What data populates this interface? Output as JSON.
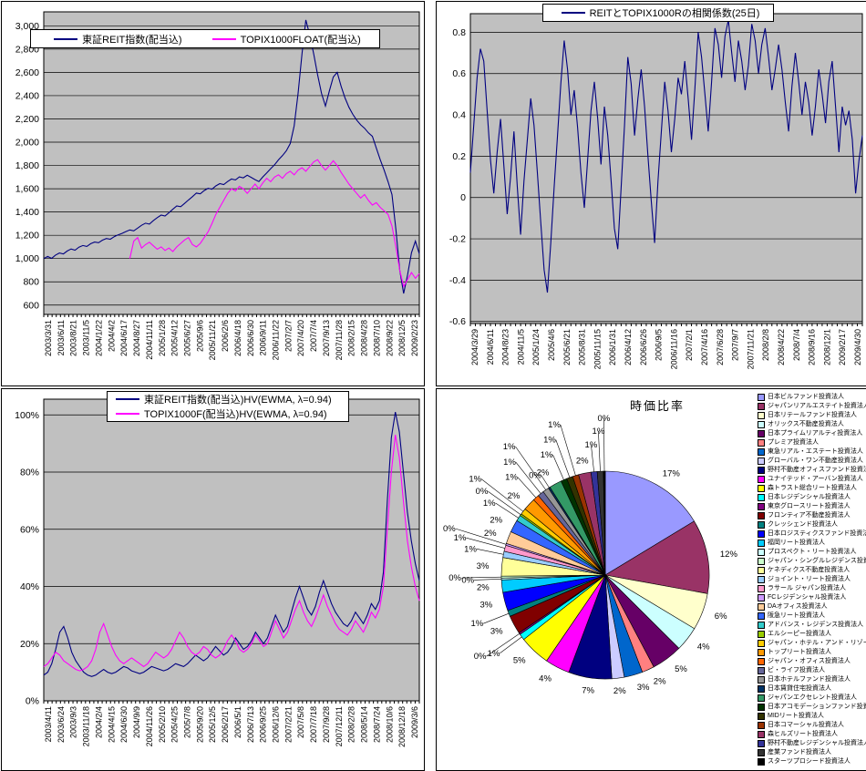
{
  "chart_data": [
    {
      "type": "line",
      "title": "",
      "legend": [
        "東証REIT指数(配当込)",
        "TOPIX1000FLOAT(配当込)"
      ],
      "legend_position": "top",
      "grid": true,
      "plot_bg": "#C0C0C0",
      "ylim": [
        520,
        3120
      ],
      "y_ticks": [
        {
          "label": "3,000",
          "v": 3000
        },
        {
          "label": "2,800",
          "v": 2800
        },
        {
          "label": "2,600",
          "v": 2600
        },
        {
          "label": "2,400",
          "v": 2400
        },
        {
          "label": "2,200",
          "v": 2200
        },
        {
          "label": "2,000",
          "v": 2000
        },
        {
          "label": "1,800",
          "v": 1800
        },
        {
          "label": "1,600",
          "v": 1600
        },
        {
          "label": "1,400",
          "v": 1400
        },
        {
          "label": "1,200",
          "v": 1200
        },
        {
          "label": "1,000",
          "v": 1000
        },
        {
          "label": "800",
          "v": 800
        },
        {
          "label": "600",
          "v": 600
        }
      ],
      "x_labels": [
        "2003/3/31",
        "2003/6/11",
        "2003/8/21",
        "2003/11/5",
        "2004/1/22",
        "2004/4/2",
        "2004/6/17",
        "2004/8/27",
        "2004/11/11",
        "2005/1/28",
        "2005/4/12",
        "2005/6/27",
        "2005/9/6",
        "2005/11/21",
        "2006/2/6",
        "2006/4/18",
        "2006/6/30",
        "2006/9/11",
        "2006/11/22",
        "2007/2/7",
        "2007/4/20",
        "2007/7/4",
        "2007/9/13",
        "2007/11/28",
        "2008/2/15",
        "2008/4/28",
        "2008/7/10",
        "2008/9/22",
        "2008/12/5",
        "2009/2/23"
      ],
      "x_points": 97,
      "series": [
        {
          "name": "東証REIT指数(配当込)",
          "color": "#000080",
          "start": 0,
          "values": [
            1000,
            1018,
            1002,
            1030,
            1048,
            1040,
            1065,
            1082,
            1072,
            1098,
            1112,
            1104,
            1128,
            1142,
            1136,
            1158,
            1172,
            1166,
            1188,
            1204,
            1216,
            1232,
            1246,
            1238,
            1262,
            1286,
            1304,
            1296,
            1326,
            1352,
            1374,
            1366,
            1394,
            1424,
            1452,
            1446,
            1474,
            1504,
            1532,
            1562,
            1556,
            1584,
            1604,
            1596,
            1624,
            1644,
            1636,
            1662,
            1684,
            1676,
            1702,
            1694,
            1716,
            1698,
            1678,
            1662,
            1702,
            1736,
            1772,
            1806,
            1848,
            1884,
            1926,
            1988,
            2140,
            2420,
            2760,
            3050,
            2920,
            2760,
            2580,
            2420,
            2310,
            2440,
            2560,
            2600,
            2480,
            2380,
            2300,
            2240,
            2190,
            2150,
            2120,
            2080,
            2050,
            1950,
            1850,
            1760,
            1660,
            1550,
            1250,
            900,
            700,
            860,
            1050,
            1150,
            1040
          ]
        },
        {
          "name": "TOPIX1000FLOAT(配当込)",
          "color": "#FF00FF",
          "start": 22,
          "values": [
            1000,
            1150,
            1180,
            1090,
            1120,
            1140,
            1110,
            1080,
            1100,
            1070,
            1090,
            1060,
            1100,
            1130,
            1160,
            1180,
            1120,
            1100,
            1130,
            1180,
            1230,
            1300,
            1380,
            1440,
            1500,
            1560,
            1600,
            1580,
            1620,
            1600,
            1560,
            1600,
            1640,
            1600,
            1650,
            1690,
            1660,
            1700,
            1720,
            1690,
            1730,
            1750,
            1720,
            1760,
            1780,
            1750,
            1790,
            1830,
            1850,
            1800,
            1760,
            1800,
            1840,
            1800,
            1740,
            1690,
            1640,
            1600,
            1560,
            1520,
            1550,
            1500,
            1460,
            1480,
            1440,
            1410,
            1380,
            1280,
            1100,
            900,
            760,
            820,
            880,
            830,
            870
          ]
        }
      ]
    },
    {
      "type": "line",
      "title": "REITとTOPIX1000Rの相関係数(25日)",
      "legend": [
        "REITとTOPIX1000Rの相関係数(25日)"
      ],
      "legend_position": "top",
      "grid": true,
      "plot_bg": "#C0C0C0",
      "ylim": [
        -0.61,
        0.89
      ],
      "y_ticks": [
        {
          "label": "0.8",
          "v": 0.8
        },
        {
          "label": "0.6",
          "v": 0.6
        },
        {
          "label": "0.4",
          "v": 0.4
        },
        {
          "label": "0.2",
          "v": 0.2
        },
        {
          "label": "0",
          "v": 0
        },
        {
          "label": "-0.2",
          "v": -0.2
        },
        {
          "label": "-0.4",
          "v": -0.4
        },
        {
          "label": "-0.6",
          "v": -0.6
        }
      ],
      "x_labels": [
        "2004/3/29",
        "2004/6/11",
        "2004/8/23",
        "2004/11/5",
        "2005/1/24",
        "2005/4/6",
        "2005/6/21",
        "2005/8/31",
        "2005/11/15",
        "2006/1/31",
        "2006/4/12",
        "2006/6/26",
        "2006/9/5",
        "2006/11/16",
        "2007/2/1",
        "2007/4/16",
        "2007/6/28",
        "2007/9/7",
        "2007/11/21",
        "2008/2/8",
        "2008/4/22",
        "2008/7/4",
        "2008/9/16",
        "2008/12/1",
        "2009/2/17",
        "2009/4/30"
      ],
      "x_points": 118,
      "series": [
        {
          "name": "REITとTOPIX1000Rの相関係数(25日)",
          "color": "#000080",
          "start": 0,
          "values": [
            0.12,
            0.35,
            0.58,
            0.72,
            0.66,
            0.42,
            0.18,
            0.02,
            0.22,
            0.38,
            0.15,
            -0.08,
            0.1,
            0.32,
            0.05,
            -0.18,
            0.08,
            0.28,
            0.48,
            0.35,
            0.12,
            -0.12,
            -0.35,
            -0.46,
            -0.22,
            0.05,
            0.3,
            0.55,
            0.76,
            0.62,
            0.4,
            0.52,
            0.34,
            0.12,
            -0.05,
            0.18,
            0.42,
            0.56,
            0.38,
            0.16,
            0.44,
            0.3,
            0.08,
            -0.15,
            -0.25,
            0.05,
            0.35,
            0.68,
            0.55,
            0.3,
            0.48,
            0.62,
            0.44,
            0.2,
            -0.02,
            -0.22,
            0.08,
            0.32,
            0.56,
            0.42,
            0.22,
            0.38,
            0.58,
            0.5,
            0.66,
            0.48,
            0.28,
            0.52,
            0.8,
            0.68,
            0.5,
            0.32,
            0.56,
            0.82,
            0.74,
            0.58,
            0.78,
            0.86,
            0.7,
            0.56,
            0.76,
            0.66,
            0.52,
            0.64,
            0.84,
            0.76,
            0.6,
            0.74,
            0.82,
            0.68,
            0.52,
            0.62,
            0.74,
            0.62,
            0.46,
            0.32,
            0.54,
            0.7,
            0.56,
            0.4,
            0.56,
            0.46,
            0.3,
            0.44,
            0.62,
            0.5,
            0.36,
            0.56,
            0.66,
            0.44,
            0.22,
            0.44,
            0.35,
            0.42,
            0.28,
            0.02,
            0.18,
            0.3
          ]
        }
      ]
    },
    {
      "type": "line",
      "title": "",
      "legend": [
        "東証REIT指数(配当込)HV(EWMA, λ=0.94)",
        "TOPIX1000F(配当込)HV(EWMA, λ=0.94)"
      ],
      "legend_position": "top",
      "grid": true,
      "plot_bg": "#C0C0C0",
      "ylim": [
        0,
        1.055
      ],
      "y_ticks": [
        {
          "label": "100%",
          "v": 1.0
        },
        {
          "label": "80%",
          "v": 0.8
        },
        {
          "label": "60%",
          "v": 0.6
        },
        {
          "label": "40%",
          "v": 0.4
        },
        {
          "label": "20%",
          "v": 0.2
        },
        {
          "label": "0%",
          "v": 0
        }
      ],
      "x_labels": [
        "2003/4/11",
        "2003/6/24",
        "2003/9/3",
        "2003/11/18",
        "2004/2/4",
        "2004/4/15",
        "2004/6/30",
        "2004/9/9",
        "2004/11/26",
        "2005/2/10",
        "2005/4/25",
        "2005/7/8",
        "2005/9/20",
        "2005/12/5",
        "2006/2/17",
        "2006/5/1",
        "2006/7/13",
        "2006/9/25",
        "2006/12/6",
        "2007/2/21",
        "2007/5/8",
        "2007/7/18",
        "2007/9/28",
        "2007/12/11",
        "2008/2/28",
        "2008/5/14",
        "2008/7/24",
        "2008/10/6",
        "2008/12/18",
        "2009/3/6"
      ],
      "x_points": 95,
      "series": [
        {
          "name": "東証REIT指数(配当込)HV(EWMA, λ=0.94)",
          "color": "#000080",
          "start": 0,
          "values": [
            0.09,
            0.1,
            0.13,
            0.18,
            0.24,
            0.26,
            0.22,
            0.17,
            0.14,
            0.12,
            0.1,
            0.09,
            0.085,
            0.09,
            0.1,
            0.11,
            0.1,
            0.095,
            0.1,
            0.11,
            0.12,
            0.115,
            0.105,
            0.1,
            0.095,
            0.1,
            0.11,
            0.12,
            0.115,
            0.11,
            0.105,
            0.11,
            0.12,
            0.13,
            0.125,
            0.12,
            0.13,
            0.145,
            0.16,
            0.15,
            0.14,
            0.15,
            0.17,
            0.19,
            0.175,
            0.16,
            0.17,
            0.19,
            0.22,
            0.2,
            0.18,
            0.19,
            0.21,
            0.24,
            0.22,
            0.2,
            0.22,
            0.26,
            0.3,
            0.27,
            0.24,
            0.26,
            0.31,
            0.36,
            0.4,
            0.36,
            0.32,
            0.3,
            0.33,
            0.38,
            0.42,
            0.38,
            0.34,
            0.31,
            0.29,
            0.27,
            0.26,
            0.28,
            0.31,
            0.29,
            0.27,
            0.3,
            0.34,
            0.32,
            0.35,
            0.45,
            0.7,
            0.92,
            1.01,
            0.94,
            0.8,
            0.66,
            0.56,
            0.48,
            0.42
          ]
        },
        {
          "name": "TOPIX1000F(配当込)HV(EWMA, λ=0.94)",
          "color": "#FF00FF",
          "start": 0,
          "values": [
            0.12,
            0.13,
            0.15,
            0.17,
            0.16,
            0.14,
            0.13,
            0.12,
            0.11,
            0.105,
            0.11,
            0.12,
            0.14,
            0.18,
            0.24,
            0.27,
            0.23,
            0.19,
            0.16,
            0.14,
            0.13,
            0.14,
            0.15,
            0.14,
            0.13,
            0.12,
            0.13,
            0.15,
            0.17,
            0.16,
            0.15,
            0.16,
            0.18,
            0.21,
            0.24,
            0.22,
            0.19,
            0.17,
            0.16,
            0.17,
            0.19,
            0.18,
            0.16,
            0.15,
            0.16,
            0.18,
            0.21,
            0.23,
            0.21,
            0.18,
            0.17,
            0.18,
            0.2,
            0.23,
            0.21,
            0.19,
            0.2,
            0.24,
            0.28,
            0.25,
            0.22,
            0.24,
            0.28,
            0.32,
            0.35,
            0.31,
            0.28,
            0.26,
            0.29,
            0.33,
            0.37,
            0.33,
            0.3,
            0.27,
            0.25,
            0.24,
            0.23,
            0.25,
            0.28,
            0.26,
            0.24,
            0.27,
            0.31,
            0.29,
            0.32,
            0.4,
            0.6,
            0.8,
            0.93,
            0.85,
            0.7,
            0.56,
            0.47,
            0.4,
            0.35
          ]
        }
      ]
    },
    {
      "type": "pie",
      "title": "時価比率",
      "legend_position": "right",
      "slices": [
        {
          "label": "日本ビルファンド投資法人",
          "pct": "17%",
          "value": 17,
          "color": "#9999FF"
        },
        {
          "label": "ジャパンリアルエステイト投資法人",
          "pct": "12%",
          "value": 12,
          "color": "#993366"
        },
        {
          "label": "日本リテールファンド投資法人",
          "pct": "6%",
          "value": 6,
          "color": "#FFFFCC"
        },
        {
          "label": "オリックス不動産投資法人",
          "pct": "4%",
          "value": 4,
          "color": "#CCFFFF"
        },
        {
          "label": "日本プライムリアルティ投資法人",
          "pct": "5%",
          "value": 5,
          "color": "#660066"
        },
        {
          "label": "プレミア投資法人",
          "pct": "2%",
          "value": 2,
          "color": "#FF8080"
        },
        {
          "label": "東急リアル・エステート投資法人",
          "pct": "3%",
          "value": 3,
          "color": "#0066CC"
        },
        {
          "label": "グローバル・ワン不動産投資法人",
          "pct": "2%",
          "value": 2,
          "color": "#CCCCFF"
        },
        {
          "label": "野村不動産オフィスファンド投資法人",
          "pct": "7%",
          "value": 7,
          "color": "#000080"
        },
        {
          "label": "ユナイテッド・アーバン投資法人",
          "pct": "4%",
          "value": 4,
          "color": "#FF00FF"
        },
        {
          "label": "森トラスト総合リート投資法人",
          "pct": "5%",
          "value": 5,
          "color": "#FFFF00"
        },
        {
          "label": "日本レジデンシャル投資法人",
          "pct": "1%",
          "value": 1,
          "color": "#00FFFF"
        },
        {
          "label": "東京グロースリート投資法人",
          "pct": "0%",
          "value": 0,
          "color": "#800080"
        },
        {
          "label": "フロンティア不動産投資法人",
          "pct": "3%",
          "value": 3,
          "color": "#800000"
        },
        {
          "label": "クレッシェンド投資法人",
          "pct": "1%",
          "value": 1,
          "color": "#008080"
        },
        {
          "label": "日本ロジスティクスファンド投資法人",
          "pct": "3%",
          "value": 3,
          "color": "#0000FF"
        },
        {
          "label": "福岡リート投資法人",
          "pct": "2%",
          "value": 2,
          "color": "#00CCFF"
        },
        {
          "label": "プロスペクト・リート投資法人",
          "pct": "0%",
          "value": 0,
          "color": "#CCFFFF"
        },
        {
          "label": "ジャパン・シングルレジデンス投資法人",
          "pct": "0%",
          "value": 0,
          "color": "#CCFFCC"
        },
        {
          "label": "ケネディクス不動産投資法人",
          "pct": "3%",
          "value": 3,
          "color": "#FFFF99"
        },
        {
          "label": "ジョイント・リート投資法人",
          "pct": "1%",
          "value": 1,
          "color": "#99CCFF"
        },
        {
          "label": "ラサール ジャパン投資法人",
          "pct": "1%",
          "value": 1,
          "color": "#FF99CC"
        },
        {
          "label": "FCレジデンシャル投資法人",
          "pct": "0%",
          "value": 0,
          "color": "#CC99FF"
        },
        {
          "label": "DAオフィス投資法人",
          "pct": "2%",
          "value": 2,
          "color": "#FFCC99"
        },
        {
          "label": "阪急リート投資法人",
          "pct": "2%",
          "value": 2,
          "color": "#3366FF"
        },
        {
          "label": "アドバンス・レジデンス投資法人",
          "pct": "1%",
          "value": 1,
          "color": "#33CCCC"
        },
        {
          "label": "エルシーピー投資法人",
          "pct": "0%",
          "value": 0,
          "color": "#99CC00"
        },
        {
          "label": "ジャパン・ホテル・アンド・リゾート投資法人",
          "pct": "1%",
          "value": 1,
          "color": "#FFCC00"
        },
        {
          "label": "トップリート投資法人",
          "pct": "2%",
          "value": 2,
          "color": "#FF9900"
        },
        {
          "label": "ジャパン・オフィス投資法人",
          "pct": "1%",
          "value": 1,
          "color": "#FF6600"
        },
        {
          "label": "ビ・ライフ投資法人",
          "pct": "1%",
          "value": 1,
          "color": "#666699"
        },
        {
          "label": "日本ホテルファンド投資法人",
          "pct": "1%",
          "value": 1,
          "color": "#969696"
        },
        {
          "label": "日本賃貸住宅投資法人",
          "pct": "0%",
          "value": 0,
          "color": "#003366"
        },
        {
          "label": "ジャパンエクセレント投資法人",
          "pct": "2%",
          "value": 2,
          "color": "#339966"
        },
        {
          "label": "日本アコモデーションファンド投資法人",
          "pct": "1%",
          "value": 1,
          "color": "#003300"
        },
        {
          "label": "MIDリート投資法人",
          "pct": "1%",
          "value": 1,
          "color": "#333300"
        },
        {
          "label": "日本コマーシャル投資法人",
          "pct": "1%",
          "value": 1,
          "color": "#993300"
        },
        {
          "label": "森ヒルズリート投資法人",
          "pct": "2%",
          "value": 2,
          "color": "#993366"
        },
        {
          "label": "野村不動産レジデンシャル投資法人",
          "pct": "1%",
          "value": 1,
          "color": "#333399"
        },
        {
          "label": "産業ファンド投資法人",
          "pct": "1%",
          "value": 1,
          "color": "#333333"
        },
        {
          "label": "スターツプロシード投資法人",
          "pct": "0%",
          "value": 0,
          "color": "#000000"
        }
      ]
    }
  ]
}
